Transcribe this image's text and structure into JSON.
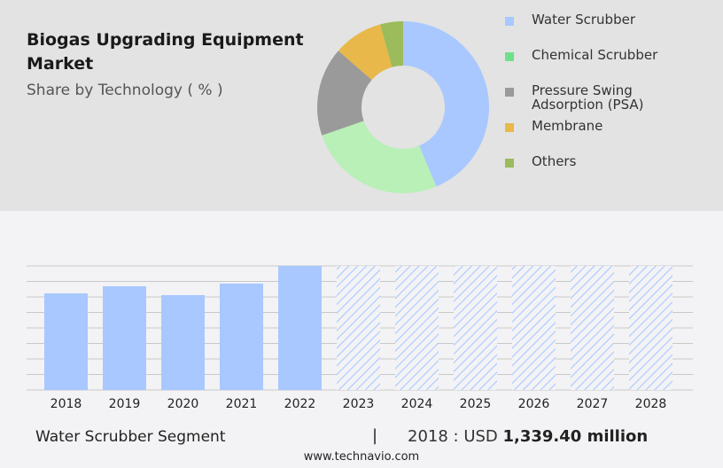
{
  "header": {
    "title": "Biogas Upgrading Equipment Market",
    "subtitle": "Share by Technology ( % )"
  },
  "chart_data": [
    {
      "type": "pie",
      "donut": true,
      "labels": [
        "Water Scrubber",
        "Chemical Scrubber",
        "Pressure Swing Adsorption (PSA)",
        "Membrane",
        "Others"
      ],
      "values": [
        43.7,
        26.0,
        16.7,
        9.3,
        4.3
      ],
      "colors": [
        "#a8c8ff",
        "#b8f0b8",
        "#9a9a9a",
        "#e8b84a",
        "#9cbb5a"
      ],
      "legend_colors": [
        "#a8c8ff",
        "#6fe08a",
        "#9a9a9a",
        "#e8b84a",
        "#9cbb5a"
      ],
      "legend_position": "right"
    },
    {
      "type": "bar",
      "categories": [
        "2018",
        "2019",
        "2020",
        "2021",
        "2022",
        "2023",
        "2024",
        "2025",
        "2026",
        "2027",
        "2028"
      ],
      "values": [
        1339.4,
        1438,
        1315,
        1475,
        1720,
        null,
        null,
        null,
        null,
        null,
        null
      ],
      "forecast": [
        false,
        false,
        false,
        false,
        false,
        true,
        true,
        true,
        true,
        true,
        true
      ],
      "ylim": [
        0,
        1720
      ],
      "grid": true,
      "color": "#a8c8ff"
    }
  ],
  "footer": {
    "segment": "Water Scrubber Segment",
    "separator": "|",
    "year_label": "2018 : USD ",
    "value": "1,339.40 million",
    "site": "www.technavio.com"
  }
}
